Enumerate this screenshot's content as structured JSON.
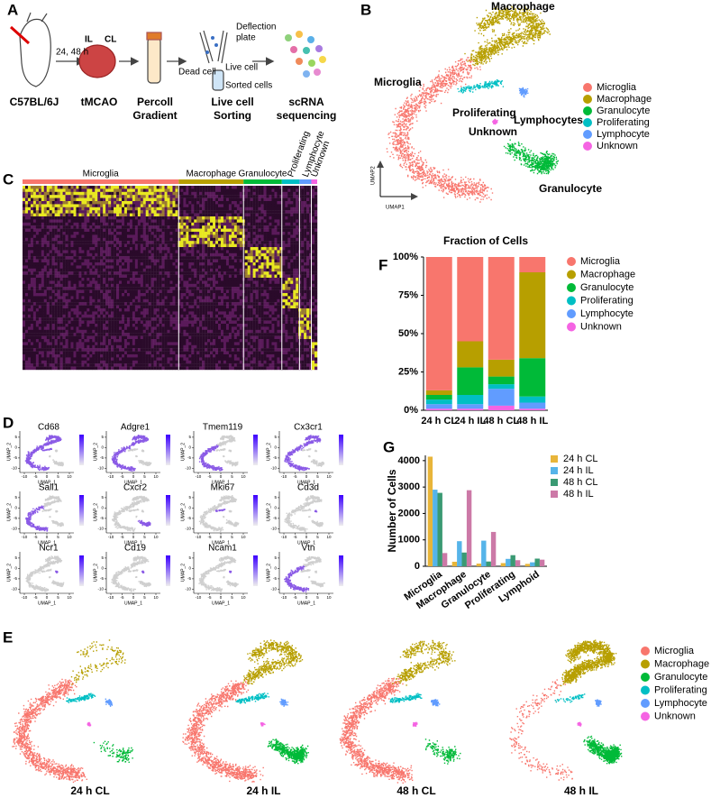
{
  "panel_labels": [
    "A",
    "B",
    "C",
    "D",
    "E",
    "F",
    "G"
  ],
  "cell_types": [
    {
      "name": "Microglia",
      "color": "#f8766d"
    },
    {
      "name": "Macrophage",
      "color": "#b79f00"
    },
    {
      "name": "Granulocyte",
      "color": "#00ba38"
    },
    {
      "name": "Proliferating",
      "color": "#00bfc4"
    },
    {
      "name": "Lymphocyte",
      "color": "#619cff"
    },
    {
      "name": "Unknown",
      "color": "#f564e3"
    }
  ],
  "panel_a": {
    "timepoint": "24, 48 h",
    "il": "IL",
    "cl": "CL",
    "steps": [
      [
        "C57BL/6J"
      ],
      [
        "tMCAO"
      ],
      [
        "Percoll",
        "Gradient"
      ],
      [
        "Live cell",
        "Sorting"
      ],
      [
        "scRNA",
        "sequencing"
      ]
    ],
    "deflection": [
      "Deflection",
      "plate"
    ],
    "dead_cell": "Dead cell",
    "live_cell": "Live cell",
    "sorted_cells": "Sorted cells"
  },
  "panel_b": {
    "x_label": "UMAP1",
    "y_label": "UMAP2",
    "cluster_labels": [
      "Microglia",
      "Macrophage",
      "Granulocyte",
      "Proliferating",
      "Lymphocytes",
      "Unknown"
    ]
  },
  "panel_d": {
    "genes": [
      "Cd68",
      "Adgre1",
      "Tmem119",
      "Cx3cr1",
      "Sall1",
      "Cxcr2",
      "Mki67",
      "Cd3d",
      "Ncr1",
      "Cd19",
      "Ncam1",
      "Vtn"
    ],
    "x_label": "UMAP_1",
    "y_label": "UMAP_2",
    "xticks": [
      -10,
      -5,
      0,
      5,
      10
    ],
    "yticks": [
      -10,
      -5,
      0,
      5
    ]
  },
  "panel_e": {
    "samples": [
      "24 h CL",
      "24 h IL",
      "48 h CL",
      "48 h IL"
    ]
  },
  "chart_data": [
    {
      "type": "stacked_bar",
      "title": "Fraction of Cells",
      "categories": [
        "24 h CL",
        "24 h IL",
        "48 h CL",
        "48 h IL"
      ],
      "series": [
        {
          "name": "Microglia",
          "color": "#f8766d",
          "values": [
            87,
            55,
            67,
            10
          ]
        },
        {
          "name": "Macrophage",
          "color": "#b79f00",
          "values": [
            3,
            17,
            11,
            56
          ]
        },
        {
          "name": "Granulocyte",
          "color": "#00ba38",
          "values": [
            3,
            18,
            5,
            25
          ]
        },
        {
          "name": "Proliferating",
          "color": "#00bfc4",
          "values": [
            3,
            6,
            3,
            4
          ]
        },
        {
          "name": "Lymphocyte",
          "color": "#619cff",
          "values": [
            3,
            3,
            11,
            4
          ]
        },
        {
          "name": "Unknown",
          "color": "#f564e3",
          "values": [
            1,
            1,
            3,
            1
          ]
        }
      ],
      "ylim": [
        0,
        100
      ],
      "yticks": [
        {
          "value": 0,
          "label": "0%"
        },
        {
          "value": 25,
          "label": "25%"
        },
        {
          "value": 50,
          "label": "50%"
        },
        {
          "value": 75,
          "label": "75%"
        },
        {
          "value": 100,
          "label": "100%"
        }
      ],
      "legend": "right"
    },
    {
      "type": "bar",
      "y_label": "Number of Cells",
      "categories": [
        "Microglia",
        "Macrophage",
        "Granulocyte",
        "Proliferating",
        "Lymphoid"
      ],
      "series": [
        {
          "name": "24 h CL",
          "color": "#e8b53a",
          "values": [
            4150,
            170,
            100,
            120,
            90
          ]
        },
        {
          "name": "24 h IL",
          "color": "#56b4e9",
          "values": [
            2900,
            950,
            970,
            280,
            150
          ]
        },
        {
          "name": "48 h CL",
          "color": "#3a9a73",
          "values": [
            2780,
            520,
            180,
            420,
            290
          ]
        },
        {
          "name": "48 h IL",
          "color": "#cc79a7",
          "values": [
            500,
            2880,
            1300,
            230,
            250
          ]
        }
      ],
      "ylim": [
        0,
        4200
      ],
      "yticks": [
        0,
        1000,
        2000,
        3000,
        4000
      ],
      "legend": "right"
    }
  ]
}
